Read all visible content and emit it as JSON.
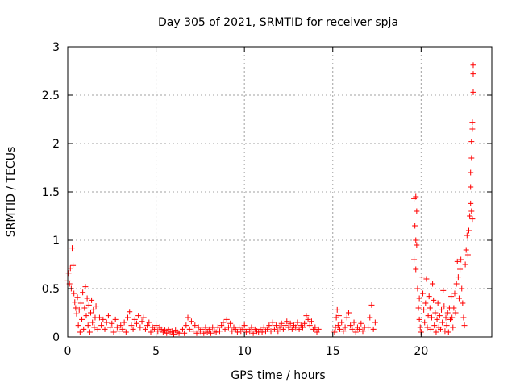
{
  "chart_data": {
    "type": "scatter",
    "title": "Day 305 of 2021, SRMTID for receiver spja",
    "xlabel": "GPS time / hours",
    "ylabel": "SRMTID / TECUs",
    "xlim": [
      0,
      24
    ],
    "ylim": [
      0,
      3
    ],
    "xticks": [
      0,
      5,
      10,
      15,
      20
    ],
    "xtick_labels": [
      "0",
      "5",
      "10",
      "15",
      "20"
    ],
    "yticks": [
      0,
      0.5,
      1,
      1.5,
      2,
      2.5,
      3
    ],
    "ytick_labels": [
      "0",
      "0.5",
      "1",
      "1.5",
      "2",
      "2.5",
      "3"
    ],
    "grid": true,
    "marker": "+",
    "color": "#ff0000",
    "series": [
      {
        "name": "SRMTID",
        "points": [
          [
            0.0,
            0.58
          ],
          [
            0.05,
            0.66
          ],
          [
            0.1,
            0.55
          ],
          [
            0.15,
            0.71
          ],
          [
            0.2,
            0.5
          ],
          [
            0.25,
            0.92
          ],
          [
            0.3,
            0.74
          ],
          [
            0.35,
            0.45
          ],
          [
            0.4,
            0.36
          ],
          [
            0.45,
            0.3
          ],
          [
            0.5,
            0.24
          ],
          [
            0.55,
            0.41
          ],
          [
            0.6,
            0.12
          ],
          [
            0.65,
            0.28
          ],
          [
            0.7,
            0.05
          ],
          [
            0.75,
            0.35
          ],
          [
            0.8,
            0.18
          ],
          [
            0.85,
            0.46
          ],
          [
            0.9,
            0.08
          ],
          [
            0.95,
            0.3
          ],
          [
            1.0,
            0.52
          ],
          [
            1.05,
            0.22
          ],
          [
            1.1,
            0.4
          ],
          [
            1.15,
            0.12
          ],
          [
            1.2,
            0.33
          ],
          [
            1.25,
            0.05
          ],
          [
            1.3,
            0.25
          ],
          [
            1.35,
            0.38
          ],
          [
            1.4,
            0.15
          ],
          [
            1.45,
            0.28
          ],
          [
            1.5,
            0.1
          ],
          [
            1.55,
            0.2
          ],
          [
            1.6,
            0.32
          ],
          [
            1.7,
            0.08
          ],
          [
            1.8,
            0.2
          ],
          [
            1.9,
            0.12
          ],
          [
            2.0,
            0.18
          ],
          [
            2.1,
            0.08
          ],
          [
            2.2,
            0.15
          ],
          [
            2.3,
            0.22
          ],
          [
            2.4,
            0.1
          ],
          [
            2.5,
            0.14
          ],
          [
            2.6,
            0.05
          ],
          [
            2.7,
            0.18
          ],
          [
            2.8,
            0.1
          ],
          [
            2.9,
            0.06
          ],
          [
            3.0,
            0.12
          ],
          [
            3.1,
            0.08
          ],
          [
            3.2,
            0.15
          ],
          [
            3.3,
            0.05
          ],
          [
            3.4,
            0.2
          ],
          [
            3.5,
            0.26
          ],
          [
            3.6,
            0.12
          ],
          [
            3.7,
            0.08
          ],
          [
            3.8,
            0.18
          ],
          [
            3.9,
            0.14
          ],
          [
            4.0,
            0.22
          ],
          [
            4.1,
            0.1
          ],
          [
            4.2,
            0.16
          ],
          [
            4.3,
            0.2
          ],
          [
            4.4,
            0.08
          ],
          [
            4.5,
            0.12
          ],
          [
            4.6,
            0.15
          ],
          [
            4.7,
            0.05
          ],
          [
            4.8,
            0.1
          ],
          [
            4.9,
            0.08
          ],
          [
            5.0,
            0.12
          ],
          [
            5.1,
            0.06
          ],
          [
            5.2,
            0.1
          ],
          [
            5.3,
            0.08
          ],
          [
            5.4,
            0.05
          ],
          [
            5.5,
            0.07
          ],
          [
            5.6,
            0.04
          ],
          [
            5.7,
            0.08
          ],
          [
            5.8,
            0.05
          ],
          [
            5.9,
            0.06
          ],
          [
            6.0,
            0.03
          ],
          [
            6.1,
            0.07
          ],
          [
            6.2,
            0.05
          ],
          [
            6.3,
            0.04
          ],
          [
            6.5,
            0.08
          ],
          [
            6.6,
            0.04
          ],
          [
            6.7,
            0.12
          ],
          [
            6.8,
            0.2
          ],
          [
            6.9,
            0.08
          ],
          [
            7.0,
            0.16
          ],
          [
            7.1,
            0.06
          ],
          [
            7.2,
            0.12
          ],
          [
            7.3,
            0.04
          ],
          [
            7.4,
            0.1
          ],
          [
            7.5,
            0.06
          ],
          [
            7.6,
            0.08
          ],
          [
            7.7,
            0.04
          ],
          [
            7.8,
            0.1
          ],
          [
            7.9,
            0.05
          ],
          [
            8.0,
            0.08
          ],
          [
            8.1,
            0.04
          ],
          [
            8.2,
            0.1
          ],
          [
            8.3,
            0.06
          ],
          [
            8.4,
            0.05
          ],
          [
            8.5,
            0.1
          ],
          [
            8.6,
            0.06
          ],
          [
            8.7,
            0.12
          ],
          [
            8.8,
            0.15
          ],
          [
            8.9,
            0.08
          ],
          [
            9.0,
            0.18
          ],
          [
            9.1,
            0.1
          ],
          [
            9.2,
            0.14
          ],
          [
            9.3,
            0.06
          ],
          [
            9.4,
            0.1
          ],
          [
            9.5,
            0.08
          ],
          [
            9.6,
            0.05
          ],
          [
            9.7,
            0.1
          ],
          [
            9.8,
            0.06
          ],
          [
            9.9,
            0.08
          ],
          [
            10.0,
            0.12
          ],
          [
            10.1,
            0.05
          ],
          [
            10.2,
            0.08
          ],
          [
            10.3,
            0.06
          ],
          [
            10.4,
            0.1
          ],
          [
            10.5,
            0.04
          ],
          [
            10.6,
            0.08
          ],
          [
            10.7,
            0.06
          ],
          [
            10.8,
            0.05
          ],
          [
            10.9,
            0.08
          ],
          [
            11.0,
            0.05
          ],
          [
            11.1,
            0.1
          ],
          [
            11.2,
            0.06
          ],
          [
            11.3,
            0.08
          ],
          [
            11.4,
            0.12
          ],
          [
            11.5,
            0.06
          ],
          [
            11.6,
            0.15
          ],
          [
            11.7,
            0.08
          ],
          [
            11.8,
            0.12
          ],
          [
            11.9,
            0.06
          ],
          [
            12.0,
            0.1
          ],
          [
            12.1,
            0.14
          ],
          [
            12.2,
            0.08
          ],
          [
            12.3,
            0.12
          ],
          [
            12.4,
            0.16
          ],
          [
            12.5,
            0.1
          ],
          [
            12.6,
            0.14
          ],
          [
            12.7,
            0.08
          ],
          [
            12.8,
            0.12
          ],
          [
            12.9,
            0.1
          ],
          [
            13.0,
            0.15
          ],
          [
            13.1,
            0.08
          ],
          [
            13.2,
            0.12
          ],
          [
            13.3,
            0.1
          ],
          [
            13.4,
            0.14
          ],
          [
            13.5,
            0.22
          ],
          [
            13.6,
            0.18
          ],
          [
            13.7,
            0.12
          ],
          [
            13.8,
            0.16
          ],
          [
            13.9,
            0.08
          ],
          [
            14.0,
            0.1
          ],
          [
            14.1,
            0.05
          ],
          [
            14.2,
            0.08
          ],
          [
            15.1,
            0.05
          ],
          [
            15.15,
            0.1
          ],
          [
            15.2,
            0.2
          ],
          [
            15.25,
            0.28
          ],
          [
            15.3,
            0.12
          ],
          [
            15.35,
            0.22
          ],
          [
            15.4,
            0.08
          ],
          [
            15.5,
            0.15
          ],
          [
            15.6,
            0.06
          ],
          [
            15.7,
            0.1
          ],
          [
            15.8,
            0.2
          ],
          [
            15.9,
            0.25
          ],
          [
            16.0,
            0.12
          ],
          [
            16.1,
            0.08
          ],
          [
            16.2,
            0.15
          ],
          [
            16.3,
            0.05
          ],
          [
            16.4,
            0.1
          ],
          [
            16.5,
            0.08
          ],
          [
            16.6,
            0.14
          ],
          [
            16.7,
            0.06
          ],
          [
            16.8,
            0.1
          ],
          [
            17.0,
            0.1
          ],
          [
            17.1,
            0.2
          ],
          [
            17.2,
            0.33
          ],
          [
            17.3,
            0.08
          ],
          [
            17.4,
            0.15
          ],
          [
            19.6,
            1.43
          ],
          [
            19.7,
            1.45
          ],
          [
            19.75,
            1.3
          ],
          [
            19.65,
            1.15
          ],
          [
            19.7,
            1.0
          ],
          [
            19.75,
            0.95
          ],
          [
            19.6,
            0.8
          ],
          [
            19.7,
            0.7
          ],
          [
            19.8,
            0.5
          ],
          [
            19.9,
            0.4
          ],
          [
            19.85,
            0.3
          ],
          [
            19.9,
            0.18
          ],
          [
            19.95,
            0.1
          ],
          [
            20.0,
            0.05
          ],
          [
            20.05,
            0.62
          ],
          [
            20.1,
            0.45
          ],
          [
            20.15,
            0.28
          ],
          [
            20.2,
            0.15
          ],
          [
            20.25,
            0.35
          ],
          [
            20.3,
            0.6
          ],
          [
            20.35,
            0.1
          ],
          [
            20.4,
            0.22
          ],
          [
            20.45,
            0.42
          ],
          [
            20.5,
            0.3
          ],
          [
            20.55,
            0.08
          ],
          [
            20.6,
            0.2
          ],
          [
            20.65,
            0.55
          ],
          [
            20.7,
            0.38
          ],
          [
            20.75,
            0.12
          ],
          [
            20.8,
            0.25
          ],
          [
            20.85,
            0.05
          ],
          [
            20.9,
            0.18
          ],
          [
            20.95,
            0.35
          ],
          [
            21.0,
            0.1
          ],
          [
            21.05,
            0.22
          ],
          [
            21.1,
            0.08
          ],
          [
            21.15,
            0.28
          ],
          [
            21.2,
            0.15
          ],
          [
            21.25,
            0.48
          ],
          [
            21.3,
            0.32
          ],
          [
            21.35,
            0.06
          ],
          [
            21.4,
            0.2
          ],
          [
            21.45,
            0.12
          ],
          [
            21.5,
            0.25
          ],
          [
            21.55,
            0.05
          ],
          [
            21.6,
            0.3
          ],
          [
            21.65,
            0.18
          ],
          [
            21.7,
            0.42
          ],
          [
            21.75,
            0.2
          ],
          [
            21.8,
            0.1
          ],
          [
            21.85,
            0.3
          ],
          [
            21.9,
            0.45
          ],
          [
            21.95,
            0.25
          ],
          [
            22.0,
            0.55
          ],
          [
            22.05,
            0.78
          ],
          [
            22.1,
            0.62
          ],
          [
            22.15,
            0.4
          ],
          [
            22.2,
            0.7
          ],
          [
            22.25,
            0.8
          ],
          [
            22.3,
            0.5
          ],
          [
            22.35,
            0.35
          ],
          [
            22.4,
            0.2
          ],
          [
            22.45,
            0.12
          ],
          [
            22.5,
            0.75
          ],
          [
            22.55,
            0.9
          ],
          [
            22.6,
            1.05
          ],
          [
            22.65,
            0.85
          ],
          [
            22.7,
            1.1
          ],
          [
            22.75,
            1.25
          ],
          [
            22.8,
            1.38
          ],
          [
            22.85,
            1.3
          ],
          [
            22.9,
            1.22
          ],
          [
            22.8,
            1.55
          ],
          [
            22.8,
            1.7
          ],
          [
            22.85,
            1.85
          ],
          [
            22.85,
            2.02
          ],
          [
            22.9,
            2.15
          ],
          [
            22.9,
            2.22
          ],
          [
            22.95,
            2.53
          ],
          [
            22.95,
            2.72
          ],
          [
            22.95,
            2.81
          ]
        ]
      }
    ]
  }
}
